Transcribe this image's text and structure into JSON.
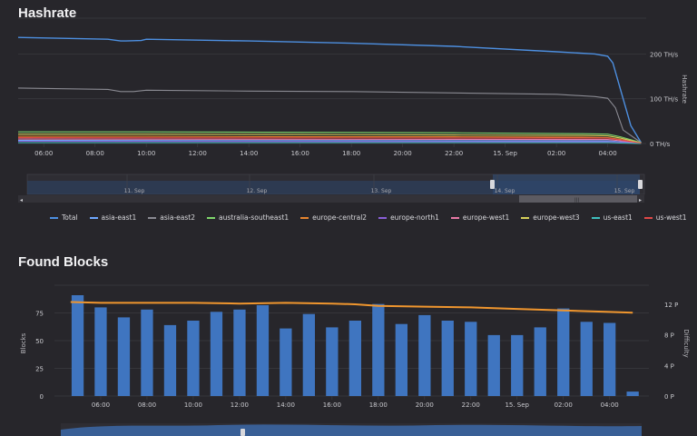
{
  "sections": {
    "hashrate_title": "Hashrate",
    "blocks_title": "Found Blocks"
  },
  "colors": {
    "background": "#27262b",
    "grid": "#3d3c42",
    "text": "#c9c9ce",
    "bar": "#3f75c0",
    "difficulty_line": "#f0962e",
    "navigator_fill": "#2c4870"
  },
  "chart_data": [
    {
      "type": "line",
      "title": "Hashrate",
      "ylabel": "Hashrate",
      "y_axis_side": "right",
      "ylim": [
        0,
        280
      ],
      "y_ticks": [
        0,
        100,
        200
      ],
      "y_tick_labels": [
        "0 TH/s",
        "100 TH/s",
        "200 TH/s"
      ],
      "x_tick_labels": [
        "06:00",
        "08:00",
        "10:00",
        "12:00",
        "14:00",
        "16:00",
        "18:00",
        "20:00",
        "22:00",
        "15. Sep",
        "02:00",
        "04:00"
      ],
      "x_range_hours": [
        5,
        29.5
      ],
      "legend_position": "bottom",
      "series": [
        {
          "name": "Total",
          "color": "#4d8fe0",
          "x": [
            5,
            8.5,
            9,
            9.2,
            9.8,
            10,
            14,
            18,
            22,
            26,
            27.5,
            28,
            28.2,
            28.5,
            28.9,
            29.3
          ],
          "y": [
            237,
            233,
            229,
            229,
            230,
            233,
            229,
            224,
            217,
            205,
            200,
            195,
            180,
            120,
            40,
            2
          ]
        },
        {
          "name": "asia-east1",
          "color": "#6fa8ff",
          "x": [
            5,
            28,
            28.5,
            29.3
          ],
          "y": [
            7,
            6,
            4,
            1
          ]
        },
        {
          "name": "asia-east2",
          "color": "#8a8a92",
          "x": [
            5,
            8.5,
            9,
            9.5,
            10,
            14,
            18,
            22,
            26,
            27.5,
            28,
            28.3,
            28.6,
            29.3
          ],
          "y": [
            124,
            121,
            116,
            116,
            119,
            117,
            116,
            113,
            110,
            105,
            101,
            80,
            30,
            2
          ]
        },
        {
          "name": "australia-southeast1",
          "color": "#7fd66c",
          "x": [
            5,
            10,
            16,
            22,
            27,
            28,
            28.5,
            29.3
          ],
          "y": [
            26,
            26,
            25,
            24,
            22,
            21,
            15,
            2
          ]
        },
        {
          "name": "europe-central2",
          "color": "#e8852e",
          "x": [
            5,
            10,
            16,
            22,
            27,
            28,
            28.5,
            29.3
          ],
          "y": [
            16,
            16,
            15,
            15,
            14,
            13,
            9,
            1
          ]
        },
        {
          "name": "europe-north1",
          "color": "#8a5fd8",
          "x": [
            5,
            28,
            28.5,
            29.3
          ],
          "y": [
            5,
            4,
            3,
            1
          ]
        },
        {
          "name": "europe-west1",
          "color": "#e879a6",
          "x": [
            5,
            28,
            28.5,
            29.3
          ],
          "y": [
            10,
            9,
            6,
            1
          ]
        },
        {
          "name": "europe-west3",
          "color": "#d6cf5a",
          "x": [
            5,
            10,
            16,
            22,
            27,
            28,
            28.5,
            29.3
          ],
          "y": [
            21,
            21,
            20,
            19,
            18,
            17,
            12,
            1
          ]
        },
        {
          "name": "us-east1",
          "color": "#3fbfbf",
          "x": [
            5,
            28,
            28.5,
            29.3
          ],
          "y": [
            2,
            2,
            1,
            0
          ]
        },
        {
          "name": "us-west1",
          "color": "#e04848",
          "x": [
            5,
            28,
            28.5,
            29.3
          ],
          "y": [
            13,
            12,
            8,
            1
          ]
        }
      ],
      "navigator": {
        "labels": [
          "11. Sep",
          "12. Sep",
          "13. Sep",
          "14. Sep",
          "15. Sep"
        ]
      }
    },
    {
      "type": "bar",
      "title": "Found Blocks",
      "ylabel": "Blocks",
      "y2label": "Difficulty",
      "ylim": [
        0,
        100
      ],
      "y_ticks": [
        0,
        25,
        50,
        75
      ],
      "y2lim": [
        0,
        14.5
      ],
      "y2_ticks": [
        0,
        4,
        8,
        12
      ],
      "y2_tick_labels": [
        "0 P",
        "4 P",
        "8 P",
        "12 P"
      ],
      "x_tick_labels": [
        "06:00",
        "08:00",
        "10:00",
        "12:00",
        "14:00",
        "16:00",
        "18:00",
        "20:00",
        "22:00",
        "15. Sep",
        "02:00",
        "04:00"
      ],
      "x_range_hours": [
        4,
        29.7
      ],
      "bar_x_hours": [
        5,
        6,
        7,
        8,
        9,
        10,
        11,
        12,
        13,
        14,
        15,
        16,
        17,
        18,
        19,
        20,
        21,
        22,
        23,
        24,
        25,
        26,
        27,
        28,
        29
      ],
      "values": [
        91,
        80,
        71,
        78,
        64,
        68,
        76,
        78,
        82,
        61,
        74,
        62,
        68,
        83,
        65,
        73,
        68,
        67,
        55,
        55,
        62,
        79,
        67,
        66,
        4
      ],
      "difficulty_series": {
        "x": [
          4.7,
          6,
          8,
          10,
          12,
          14,
          16,
          17,
          18,
          20,
          22,
          24,
          26,
          28,
          29
        ],
        "y": [
          12.3,
          12.2,
          12.2,
          12.2,
          12.1,
          12.2,
          12.1,
          12.0,
          11.8,
          11.7,
          11.6,
          11.4,
          11.2,
          11.0,
          10.9
        ]
      }
    }
  ]
}
